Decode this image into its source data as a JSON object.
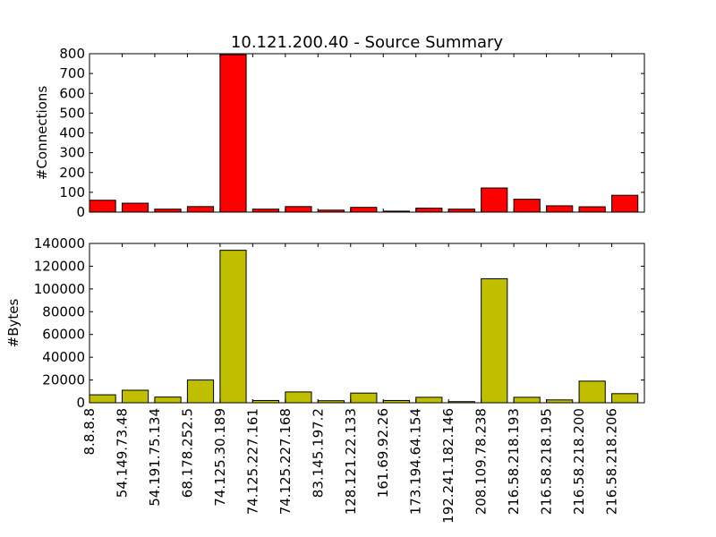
{
  "title": "10.121.200.40 - Source Summary",
  "categories": [
    "8.8.8.8",
    "54.149.73.48",
    "54.191.75.134",
    "68.178.252.5",
    "74.125.30.189",
    "74.125.227.161",
    "74.125.227.168",
    "83.145.197.2",
    "128.121.22.133",
    "161.69.92.26",
    "173.194.64.154",
    "192.241.182.146",
    "208.109.78.238",
    "216.58.218.193",
    "216.58.218.195",
    "216.58.218.200",
    "216.58.218.206"
  ],
  "chart_data": [
    {
      "type": "bar",
      "title": "10.121.200.40 - Source Summary",
      "ylabel": "#Connections",
      "xlabel": "",
      "ylim": [
        0,
        800
      ],
      "yticks": [
        "0",
        "100",
        "200",
        "300",
        "400",
        "500",
        "600",
        "700",
        "800"
      ],
      "ytick_values": [
        0,
        100,
        200,
        300,
        400,
        500,
        600,
        700,
        800
      ],
      "color": "#ff0000",
      "categories": [
        "8.8.8.8",
        "54.149.73.48",
        "54.191.75.134",
        "68.178.252.5",
        "74.125.30.189",
        "74.125.227.161",
        "74.125.227.168",
        "83.145.197.2",
        "128.121.22.133",
        "161.69.92.26",
        "173.194.64.154",
        "192.241.182.146",
        "208.109.78.238",
        "216.58.218.193",
        "216.58.218.195",
        "216.58.218.200",
        "216.58.218.206"
      ],
      "values": [
        60,
        45,
        15,
        28,
        795,
        15,
        28,
        10,
        24,
        5,
        20,
        15,
        122,
        65,
        32,
        27,
        85
      ]
    },
    {
      "type": "bar",
      "title": "",
      "ylabel": "#Bytes",
      "xlabel": "",
      "ylim": [
        0,
        140000
      ],
      "yticks": [
        "0",
        "20000",
        "40000",
        "60000",
        "80000",
        "100000",
        "120000",
        "140000"
      ],
      "ytick_values": [
        0,
        20000,
        40000,
        60000,
        80000,
        100000,
        120000,
        140000
      ],
      "color": "#bfbf00",
      "categories": [
        "8.8.8.8",
        "54.149.73.48",
        "54.191.75.134",
        "68.178.252.5",
        "74.125.30.189",
        "74.125.227.161",
        "74.125.227.168",
        "83.145.197.2",
        "128.121.22.133",
        "161.69.92.26",
        "173.194.64.154",
        "192.241.182.146",
        "208.109.78.238",
        "216.58.218.193",
        "216.58.218.195",
        "216.58.218.200",
        "216.58.218.206"
      ],
      "values": [
        7000,
        11000,
        5000,
        20000,
        134000,
        2000,
        9500,
        1800,
        8500,
        2000,
        4800,
        1000,
        109000,
        4800,
        2500,
        19000,
        8000
      ]
    }
  ]
}
